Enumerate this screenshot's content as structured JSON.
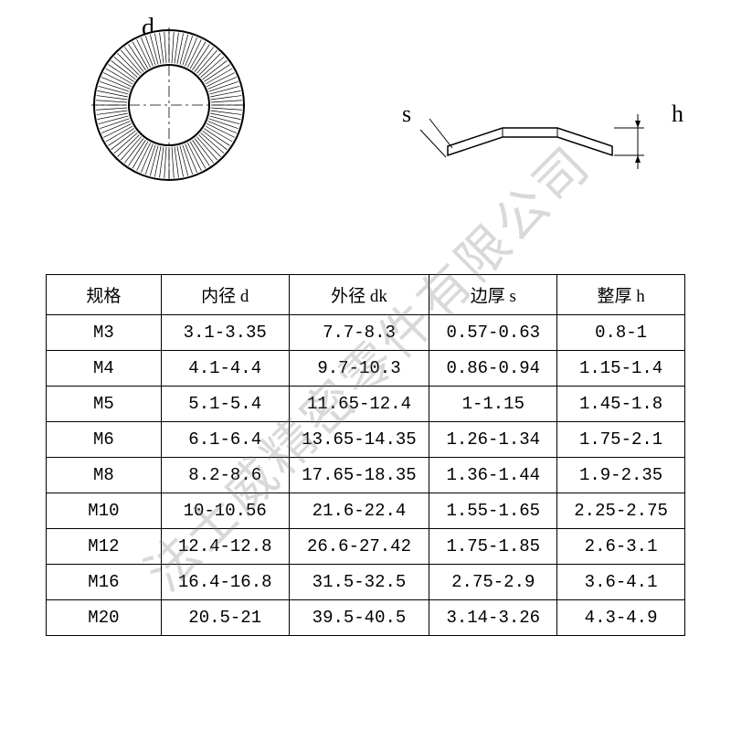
{
  "diagram": {
    "top_label": "d",
    "side_label_left": "s",
    "side_label_right": "h",
    "washer_outer_radius": 85,
    "washer_inner_radius": 45,
    "washer_stroke": "#000000",
    "washer_fill": "#ffffff",
    "centerline_color": "#000000"
  },
  "table": {
    "columns": [
      "规格",
      "内径 d",
      "外径 dk",
      "边厚 s",
      "整厚 h"
    ],
    "col_widths": [
      "18%",
      "20%",
      "22%",
      "20%",
      "20%"
    ],
    "rows": [
      [
        "M3",
        "3.1-3.35",
        "7.7-8.3",
        "0.57-0.63",
        "0.8-1"
      ],
      [
        "M4",
        "4.1-4.4",
        "9.7-10.3",
        "0.86-0.94",
        "1.15-1.4"
      ],
      [
        "M5",
        "5.1-5.4",
        "11.65-12.4",
        "1-1.15",
        "1.45-1.8"
      ],
      [
        "M6",
        "6.1-6.4",
        "13.65-14.35",
        "1.26-1.34",
        "1.75-2.1"
      ],
      [
        "M8",
        "8.2-8.6",
        "17.65-18.35",
        "1.36-1.44",
        "1.9-2.35"
      ],
      [
        "M10",
        "10-10.56",
        "21.6-22.4",
        "1.55-1.65",
        "2.25-2.75"
      ],
      [
        "M12",
        "12.4-12.8",
        "26.6-27.42",
        "1.75-1.85",
        "2.6-3.1"
      ],
      [
        "M16",
        "16.4-16.8",
        "31.5-32.5",
        "2.75-2.9",
        "3.6-4.1"
      ],
      [
        "M20",
        "20.5-21",
        "39.5-40.5",
        "3.14-3.26",
        "4.3-4.9"
      ]
    ]
  },
  "watermark_text": "法士威精密零件有限公司"
}
